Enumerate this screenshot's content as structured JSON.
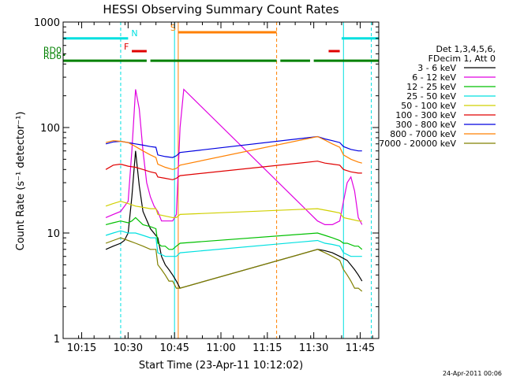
{
  "chart_data": {
    "type": "line",
    "title": "HESSI Observing Summary Count Rates",
    "xlabel": "Start Time (23-Apr-11 10:12:02)",
    "ylabel": "Count Rate (s⁻¹ detector⁻¹)",
    "y_scale": "log",
    "xlim": [
      10.15,
      11.85
    ],
    "ylim": [
      1,
      1000
    ],
    "x_ticks": [
      {
        "value": 10.25,
        "label": "10:15"
      },
      {
        "value": 10.5,
        "label": "10:30"
      },
      {
        "value": 10.75,
        "label": "10:45"
      },
      {
        "value": 11.0,
        "label": "11:00"
      },
      {
        "value": 11.25,
        "label": "11:15"
      },
      {
        "value": 11.5,
        "label": "11:30"
      },
      {
        "value": 11.75,
        "label": "11:45"
      }
    ],
    "y_ticks": [
      {
        "value": 1,
        "label": "1"
      },
      {
        "value": 10,
        "label": "10"
      },
      {
        "value": 100,
        "label": "100"
      },
      {
        "value": 1000,
        "label": "1000"
      }
    ],
    "legend": {
      "header": [
        "Det 1,3,4,5,6,",
        "FDecim 1, Att 0"
      ],
      "placement": "right"
    },
    "series": [
      {
        "name": "3 - 6 keV",
        "color": "#000000",
        "x": [
          10.38,
          10.42,
          10.46,
          10.48,
          10.5,
          10.52,
          10.54,
          10.56,
          10.58,
          10.62,
          10.66,
          10.68,
          10.7,
          10.72,
          10.74,
          10.76,
          10.78,
          11.52,
          11.56,
          11.6,
          11.64,
          11.68,
          11.72,
          11.74,
          11.76
        ],
        "y": [
          7,
          7.5,
          8,
          8.5,
          10,
          22,
          60,
          28,
          16,
          11,
          9,
          6,
          5,
          4.5,
          4,
          3.5,
          3,
          7,
          6.8,
          6.5,
          6,
          5.5,
          4.5,
          4,
          3.5
        ]
      },
      {
        "name": "6 - 12 keV",
        "color": "#e000e0",
        "x": [
          10.38,
          10.42,
          10.46,
          10.5,
          10.52,
          10.54,
          10.56,
          10.58,
          10.6,
          10.62,
          10.64,
          10.66,
          10.68,
          10.7,
          10.72,
          10.74,
          10.76,
          10.78,
          10.8,
          11.52,
          11.56,
          11.6,
          11.64,
          11.66,
          11.68,
          11.7,
          11.72,
          11.74,
          11.76
        ],
        "y": [
          14,
          15,
          16,
          20,
          60,
          230,
          150,
          60,
          30,
          22,
          18,
          16,
          13,
          13,
          13,
          13,
          15,
          100,
          230,
          13,
          12,
          12,
          13,
          20,
          30,
          34,
          25,
          14,
          12
        ]
      },
      {
        "name": "12 - 25 keV",
        "color": "#00c000",
        "x": [
          10.38,
          10.42,
          10.46,
          10.5,
          10.52,
          10.54,
          10.58,
          10.62,
          10.65,
          10.66,
          10.68,
          10.7,
          10.72,
          10.74,
          10.76,
          10.78,
          11.52,
          11.56,
          11.6,
          11.64,
          11.66,
          11.68,
          11.72,
          11.74,
          11.76
        ],
        "y": [
          12,
          12.5,
          13,
          12.5,
          13,
          14,
          12,
          11.5,
          11,
          8,
          7.5,
          7.5,
          7,
          7,
          7.5,
          8,
          10,
          9.5,
          9,
          8.5,
          8,
          8,
          7.5,
          7.5,
          7
        ]
      },
      {
        "name": "25 - 50 keV",
        "color": "#00e0e0",
        "x": [
          10.38,
          10.42,
          10.46,
          10.5,
          10.54,
          10.58,
          10.62,
          10.65,
          10.66,
          10.7,
          10.74,
          10.76,
          10.78,
          11.52,
          11.56,
          11.6,
          11.64,
          11.66,
          11.7,
          11.74,
          11.76
        ],
        "y": [
          9.5,
          10,
          10.5,
          10,
          10,
          9.5,
          9,
          9,
          6.5,
          6,
          6,
          6,
          6.5,
          8.5,
          8,
          7.8,
          7.5,
          6.5,
          6,
          6,
          6
        ]
      },
      {
        "name": "50 - 100 keV",
        "color": "#d0d000",
        "x": [
          10.38,
          10.42,
          10.46,
          10.5,
          10.54,
          10.58,
          10.62,
          10.65,
          10.66,
          10.7,
          10.74,
          10.76,
          10.78,
          11.52,
          11.56,
          11.6,
          11.64,
          11.66,
          11.7,
          11.74,
          11.76
        ],
        "y": [
          18,
          19,
          20,
          19,
          18,
          17.5,
          17,
          17,
          15,
          14.5,
          14,
          14,
          15,
          17,
          16.5,
          16,
          15.5,
          14,
          13.5,
          13,
          13
        ]
      },
      {
        "name": "100 - 300 keV",
        "color": "#e00000",
        "x": [
          10.38,
          10.42,
          10.46,
          10.5,
          10.54,
          10.58,
          10.62,
          10.65,
          10.66,
          10.7,
          10.74,
          10.76,
          10.78,
          11.52,
          11.56,
          11.6,
          11.64,
          11.66,
          11.7,
          11.74,
          11.76
        ],
        "y": [
          40,
          44,
          45,
          43,
          42,
          40,
          38,
          37,
          34,
          33,
          32,
          33,
          35,
          48,
          46,
          45,
          44,
          40,
          38,
          37,
          37
        ]
      },
      {
        "name": "300 - 800 keV",
        "color": "#0000e0",
        "x": [
          10.38,
          10.42,
          10.46,
          10.5,
          10.54,
          10.58,
          10.62,
          10.65,
          10.66,
          10.7,
          10.74,
          10.76,
          10.78,
          11.52,
          11.56,
          11.6,
          11.64,
          11.66,
          11.7,
          11.74,
          11.76
        ],
        "y": [
          70,
          73,
          74,
          72,
          70,
          68,
          66,
          65,
          55,
          53,
          52,
          54,
          58,
          82,
          78,
          75,
          72,
          66,
          62,
          60,
          60
        ]
      },
      {
        "name": "800 - 7000 keV",
        "color": "#ff8000",
        "x": [
          10.38,
          10.42,
          10.46,
          10.5,
          10.54,
          10.58,
          10.62,
          10.65,
          10.66,
          10.7,
          10.74,
          10.76,
          10.78,
          11.52,
          11.56,
          11.6,
          11.64,
          11.66,
          11.7,
          11.74,
          11.76
        ],
        "y": [
          72,
          75,
          74,
          72,
          66,
          60,
          55,
          52,
          45,
          42,
          40,
          41,
          44,
          82,
          76,
          70,
          65,
          55,
          50,
          47,
          46
        ]
      },
      {
        "name": "7000 - 20000 keV",
        "color": "#808000",
        "x": [
          10.38,
          10.42,
          10.46,
          10.5,
          10.54,
          10.58,
          10.62,
          10.65,
          10.66,
          10.68,
          10.7,
          10.72,
          10.74,
          10.76,
          10.78,
          11.52,
          11.56,
          11.6,
          11.64,
          11.66,
          11.68,
          11.7,
          11.72,
          11.74,
          11.76
        ],
        "y": [
          8,
          8.5,
          9,
          8.5,
          8,
          7.5,
          7,
          7,
          5,
          4.5,
          4,
          3.5,
          3.5,
          3,
          3,
          7,
          6.5,
          6,
          5.5,
          4.5,
          4,
          3.5,
          3,
          3,
          2.8
        ]
      }
    ],
    "flag_bars": [
      {
        "label": "N",
        "color": "#00e0e0",
        "y_level": 700,
        "segments": [
          [
            10.15,
            10.5
          ],
          [
            11.65,
            11.85
          ]
        ]
      },
      {
        "label": "S",
        "color": "#ff8000",
        "y_level": 800,
        "segments": [
          [
            10.77,
            11.3
          ]
        ]
      },
      {
        "label": "F",
        "color": "#e00000",
        "y_level": 530,
        "segments": [
          [
            10.52,
            10.6
          ],
          [
            11.58,
            11.64
          ]
        ]
      },
      {
        "label": "RD0",
        "color": "#008000",
        "y_level": 490,
        "segments": [
          [
            10.15,
            10.16
          ]
        ]
      },
      {
        "label": "RD6",
        "color": "#008000",
        "y_level": 430,
        "segments": [
          [
            10.15,
            10.6
          ],
          [
            10.62,
            11.3
          ],
          [
            11.32,
            11.48
          ],
          [
            11.5,
            11.85
          ]
        ]
      }
    ],
    "vertical_markers": [
      {
        "x": 10.15,
        "color": "#00e0e0",
        "style": "solid"
      },
      {
        "x": 10.46,
        "color": "#00e0e0",
        "style": "dashed"
      },
      {
        "x": 10.77,
        "color": "#ff8000",
        "style": "solid"
      },
      {
        "x": 11.3,
        "color": "#ff8000",
        "style": "dashed"
      },
      {
        "x": 11.66,
        "color": "#00e0e0",
        "style": "solid"
      },
      {
        "x": 11.81,
        "color": "#00e0e0",
        "style": "dashed"
      },
      {
        "x": 10.75,
        "color": "#00e0e0",
        "style": "solid"
      }
    ],
    "footer": "24-Apr-2011 00:06"
  }
}
